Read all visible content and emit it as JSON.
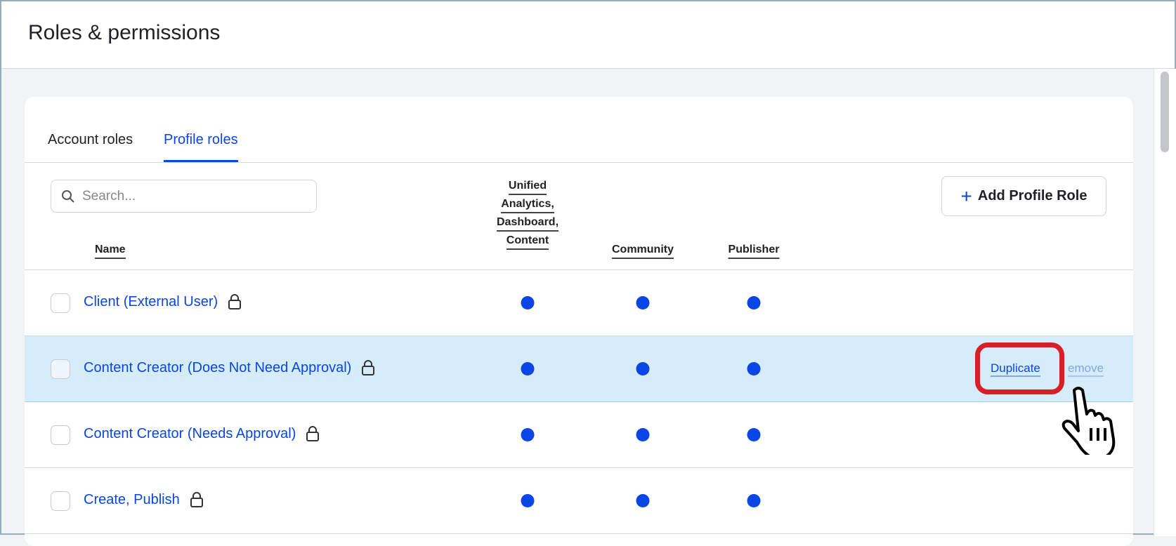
{
  "page": {
    "title": "Roles & permissions"
  },
  "tabs": [
    {
      "label": "Account roles",
      "active": false
    },
    {
      "label": "Profile roles",
      "active": true
    }
  ],
  "search": {
    "placeholder": "Search...",
    "value": ""
  },
  "add_button": {
    "label": "Add Profile Role",
    "icon": "plus-icon"
  },
  "columns": {
    "name": "Name",
    "c1": [
      "Unified",
      "Analytics,",
      "Dashboard,",
      "Content"
    ],
    "c2": "Community",
    "c3": "Publisher"
  },
  "rows": [
    {
      "name": "Client (External User)",
      "locked": true,
      "perms": [
        true,
        true,
        true
      ]
    },
    {
      "name": "Content Creator (Does Not Need Approval)",
      "locked": true,
      "perms": [
        true,
        true,
        true
      ],
      "hovered": true
    },
    {
      "name": "Content Creator (Needs Approval)",
      "locked": true,
      "perms": [
        true,
        true,
        true
      ]
    },
    {
      "name": "Create, Publish",
      "locked": true,
      "perms": [
        true,
        true,
        true
      ]
    }
  ],
  "row_actions": {
    "duplicate": "Duplicate",
    "remove": "emove"
  },
  "colors": {
    "accent": "#0a45e6",
    "highlight": "#d6ecfb",
    "annotation": "#d81f26"
  }
}
